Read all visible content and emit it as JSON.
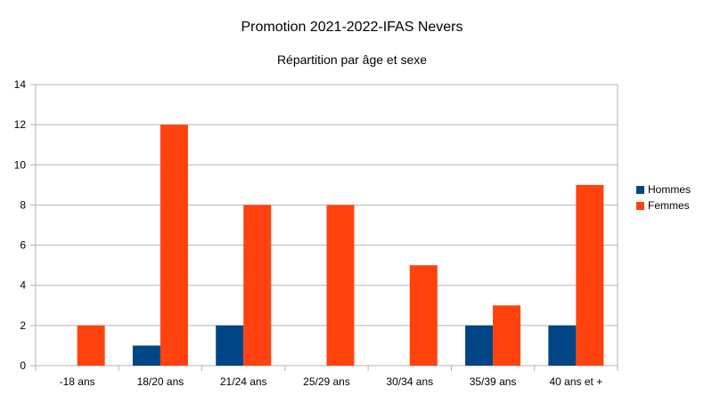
{
  "chart_data": {
    "type": "bar",
    "title": "Promotion 2021-2022-IFAS Nevers",
    "subtitle": "Répartition par âge et sexe",
    "xlabel": "",
    "ylabel": "",
    "categories": [
      "-18 ans",
      "18/20 ans",
      "21/24 ans",
      "25/29 ans",
      "30/34 ans",
      "35/39 ans",
      "40 ans et +"
    ],
    "series": [
      {
        "name": "Hommes",
        "color": "#004586",
        "values": [
          0,
          1,
          2,
          0,
          0,
          2,
          2
        ]
      },
      {
        "name": "Femmes",
        "color": "#ff420e",
        "values": [
          2,
          12,
          8,
          8,
          5,
          3,
          9
        ]
      }
    ],
    "ylim": [
      0,
      14
    ],
    "yticks": [
      0,
      2,
      4,
      6,
      8,
      10,
      12,
      14
    ],
    "grid": true,
    "legend_position": "right"
  }
}
